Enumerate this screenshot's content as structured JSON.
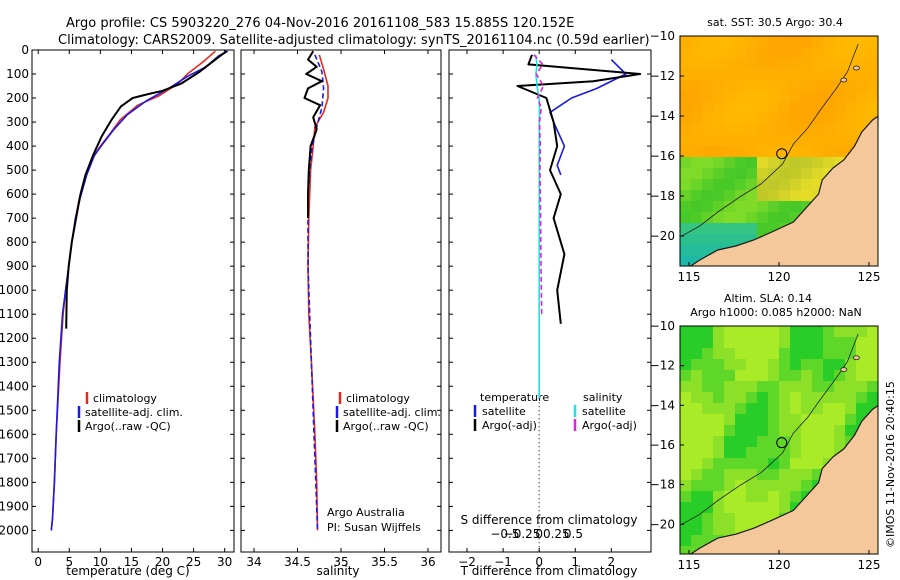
{
  "header": {
    "line1": "Argo profile: CS 5903220_276 04-Nov-2016 20161108_583 15.885S 120.152E",
    "line2": "Climatology: CARS2009. Satellite-adjusted climatology: synTS_20161104.nc (0.59d earlier)"
  },
  "credits": {
    "argo": "Argo Australia",
    "pi": "PI: Susan Wijffels",
    "imos_stamp": "©IMOS 11-Nov-2016 20:40:15"
  },
  "colors": {
    "climatology": "#e8281e",
    "satellite": "#1a1ae6",
    "argo": "#000000",
    "salinity_sat": "#22e0e0",
    "salinity_argo": "#e020e0",
    "land": "#f5c89b",
    "coast": "#1a1a1a"
  },
  "chart_data": [
    {
      "type": "line",
      "id": "temperature",
      "xlabel": "temperature (deg C)",
      "ylabel": "",
      "xlim": [
        -1,
        31.5
      ],
      "ylim": [
        0,
        2090
      ],
      "y_inverted": true,
      "xticks": [
        0,
        5,
        10,
        15,
        20,
        25,
        30
      ],
      "yticks": [
        0,
        100,
        200,
        300,
        400,
        500,
        600,
        700,
        800,
        900,
        1000,
        1100,
        1200,
        1300,
        1400,
        1500,
        1600,
        1700,
        1800,
        1900,
        2000
      ],
      "legend": [
        "climatology",
        "satellite-adj. clim.",
        "Argo(..raw -QC)"
      ],
      "legend_position": "lower-right",
      "series": [
        {
          "name": "climatology",
          "color": "#e8281e",
          "x": [
            28.5,
            26.5,
            24,
            22.5,
            19.5,
            16,
            13.2,
            11.5,
            10,
            8.8,
            7.6,
            6.6,
            6.0,
            5.4,
            4.9,
            4.4,
            4.0,
            3.5,
            2.9,
            2.6,
            2.3,
            2.1
          ],
          "y": [
            5,
            50,
            100,
            140,
            190,
            230,
            290,
            350,
            400,
            450,
            530,
            620,
            700,
            800,
            900,
            1000,
            1100,
            1300,
            1600,
            1800,
            1950,
            2000
          ]
        },
        {
          "name": "satellite-adj. clim.",
          "color": "#1a1ae6",
          "x": [
            30.5,
            29,
            27,
            24,
            21,
            17.5,
            14.3,
            12.2,
            10.4,
            9.0,
            7.8,
            6.7,
            6.0,
            5.4,
            4.9,
            4.4,
            3.9,
            3.4,
            2.9,
            2.6,
            2.3,
            2.1
          ],
          "y": [
            5,
            25,
            70,
            110,
            160,
            210,
            270,
            330,
            390,
            440,
            520,
            620,
            700,
            800,
            900,
            1000,
            1100,
            1300,
            1600,
            1800,
            1950,
            2000
          ]
        },
        {
          "name": "Argo(..raw -QC)",
          "color": "#000000",
          "x": [
            30.3,
            29.5,
            28.5,
            26,
            23,
            20,
            17.5,
            15.2,
            13.3,
            11.8,
            10.2,
            8.8,
            7.6,
            6.8,
            6.1,
            5.4,
            4.9,
            4.6,
            4.5
          ],
          "y": [
            5,
            20,
            40,
            90,
            140,
            170,
            185,
            200,
            235,
            290,
            360,
            440,
            520,
            600,
            700,
            800,
            900,
            1000,
            1160
          ]
        }
      ]
    },
    {
      "type": "line",
      "id": "salinity",
      "xlabel": "salinity",
      "xlim": [
        33.85,
        36.15
      ],
      "ylim": [
        0,
        2090
      ],
      "y_inverted": true,
      "xticks": [
        34,
        34.5,
        35,
        35.5,
        36
      ],
      "legend": [
        "climatology",
        "satellite-adj. clim.",
        "Argo(..raw -QC)"
      ],
      "legend_position": "lower-right",
      "series": [
        {
          "name": "climatology",
          "color": "#e8281e",
          "x": [
            34.75,
            34.8,
            34.85,
            34.85,
            34.8,
            34.7,
            34.68,
            34.65,
            34.64,
            34.63,
            34.62,
            34.63,
            34.66,
            34.7,
            34.72,
            34.73
          ],
          "y": [
            20,
            80,
            150,
            200,
            260,
            320,
            400,
            500,
            600,
            700,
            900,
            1100,
            1300,
            1600,
            1800,
            2000
          ]
        },
        {
          "name": "satellite-adj. clim.",
          "color": "#1a1ae6",
          "x": [
            34.7,
            34.78,
            34.8,
            34.78,
            34.72,
            34.67,
            34.64,
            34.62,
            34.62,
            34.62,
            34.64,
            34.66,
            34.69,
            34.71,
            34.73
          ],
          "y": [
            20,
            90,
            160,
            240,
            320,
            400,
            500,
            600,
            700,
            900,
            1100,
            1300,
            1600,
            1800,
            2000
          ]
        },
        {
          "name": "Argo(..raw -QC)",
          "color": "#000000",
          "x": [
            34.68,
            34.62,
            34.72,
            34.6,
            34.78,
            34.62,
            34.58,
            34.76,
            34.68,
            34.72,
            34.65,
            34.63,
            34.62,
            34.62
          ],
          "y": [
            5,
            40,
            70,
            100,
            130,
            160,
            200,
            230,
            280,
            330,
            400,
            500,
            600,
            700
          ]
        }
      ]
    },
    {
      "type": "line",
      "id": "difference",
      "xlabel": "T difference from climatology",
      "xlabel_top": "S difference from climatology",
      "xlim": [
        -2.5,
        3.1
      ],
      "ylim": [
        0,
        2090
      ],
      "y_inverted": true,
      "xticks": [
        -2,
        -1,
        0,
        1,
        2
      ],
      "s_ticks": [
        -0.5,
        -0.25,
        0,
        0.25,
        0.5
      ],
      "legend": [
        "temperature",
        "satellite",
        "Argo(-adj)",
        "salinity",
        "satellite",
        "Argo(-adj)"
      ],
      "legend_position": "lower-center",
      "series": [
        {
          "name": "temperature satellite",
          "color": "#1a1ae6",
          "x": [
            2.0,
            2.4,
            1.6,
            0.9,
            0.6,
            0.3,
            0.4,
            0.7,
            0.5,
            0.6
          ],
          "y": [
            40,
            100,
            160,
            200,
            230,
            260,
            300,
            400,
            480,
            520
          ]
        },
        {
          "name": "temperature Argo(-adj)",
          "color": "#000000",
          "x": [
            -0.2,
            -0.3,
            2.8,
            1.5,
            -0.6,
            0.2,
            0.4,
            0.5,
            0.3,
            0.6,
            0.4,
            0.7,
            0.5,
            0.6
          ],
          "y": [
            20,
            60,
            100,
            130,
            150,
            200,
            300,
            400,
            500,
            600,
            700,
            850,
            1000,
            1140
          ]
        },
        {
          "name": "salinity satellite",
          "color": "#22e0e0",
          "x": [
            -0.1,
            -0.06,
            -0.09,
            -0.05,
            0,
            0.01,
            0.0,
            0.0
          ],
          "y": [
            20,
            60,
            100,
            160,
            200,
            260,
            300,
            1450
          ]
        },
        {
          "name": "salinity Argo(-adj)",
          "color": "#e020e0",
          "x": [
            -0.15,
            0.1,
            -0.08,
            0.12,
            -0.05,
            0.06,
            0.01,
            0.03,
            0.02,
            0.04,
            0.05,
            0.07
          ],
          "y": [
            20,
            60,
            100,
            150,
            200,
            240,
            300,
            400,
            500,
            700,
            900,
            1100
          ]
        }
      ]
    },
    {
      "type": "heatmap",
      "id": "sst-map",
      "title": "sat. SST: 30.5  Argo: 30.4",
      "xlim": [
        114.5,
        125.5
      ],
      "ylim": [
        -21.5,
        -10
      ],
      "xticks": [
        115,
        120,
        125
      ],
      "yticks": [
        -10,
        -12,
        -14,
        -16,
        -18,
        -20
      ],
      "profile_location": {
        "lon": 120.152,
        "lat": -15.885
      }
    },
    {
      "type": "heatmap",
      "id": "sla-map",
      "title": "Altim. SLA: 0.14",
      "subtitle": "Argo h1000: 0.085 h2000: NaN",
      "xlim": [
        114.5,
        125.5
      ],
      "ylim": [
        -21.5,
        -10
      ],
      "xticks": [
        115,
        120,
        125
      ],
      "yticks": [
        -10,
        -12,
        -14,
        -16,
        -18,
        -20
      ],
      "profile_location": {
        "lon": 120.152,
        "lat": -15.885
      }
    }
  ]
}
